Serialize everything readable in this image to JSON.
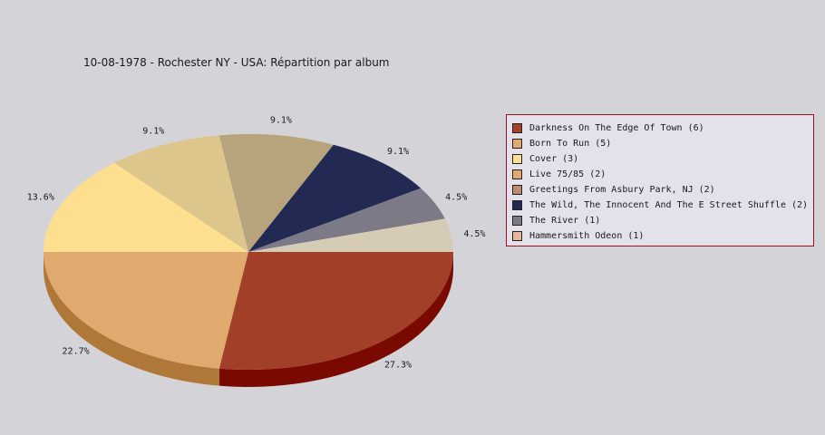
{
  "chart_data": {
    "type": "pie",
    "title": "10-08-1978 - Rochester NY - USA:  Répartition par album",
    "slices": [
      {
        "label": "Darkness On The Edge Of Town (6)",
        "value": 6,
        "pct_label": "27.3%",
        "color": "#a23f28",
        "side": "#7a0a00"
      },
      {
        "label": "Born To Run (5)",
        "value": 5,
        "pct_label": "22.7%",
        "color": "#e0aa6e",
        "side": "#b07838"
      },
      {
        "label": "Cover (3)",
        "value": 3,
        "pct_label": "13.6%",
        "color": "#fedf90",
        "side": "#c9a95c"
      },
      {
        "label": "Live 75/85 (2)",
        "value": 2,
        "pct_label": "9.1%",
        "color": "#dcc68c",
        "side": "#a8955e"
      },
      {
        "label": "Greetings From Asbury Park, NJ (2)",
        "value": 2,
        "pct_label": "9.1%",
        "color": "#b8a47c",
        "side": "#857350"
      },
      {
        "label": "The Wild, The Innocent And The E Street Shuffle (2)",
        "value": 2,
        "pct_label": "9.1%",
        "color": "#222a54",
        "side": "#10152e"
      },
      {
        "label": "The River (1)",
        "value": 1,
        "pct_label": "4.5%",
        "color": "#7c7a86",
        "side": "#55535e"
      },
      {
        "label": "Hammersmith Odeon  (1)",
        "value": 1,
        "pct_label": "4.5%",
        "color": "#d6ccb6",
        "side": "#a89c84"
      }
    ],
    "legend_swatch_colors": [
      "#a23f28",
      "#e0aa6e",
      "#fedf90",
      "#e0aa6e",
      "#c08a70",
      "#222a54",
      "#7c7a86",
      "#e8b49a"
    ],
    "legend_position": "right"
  }
}
